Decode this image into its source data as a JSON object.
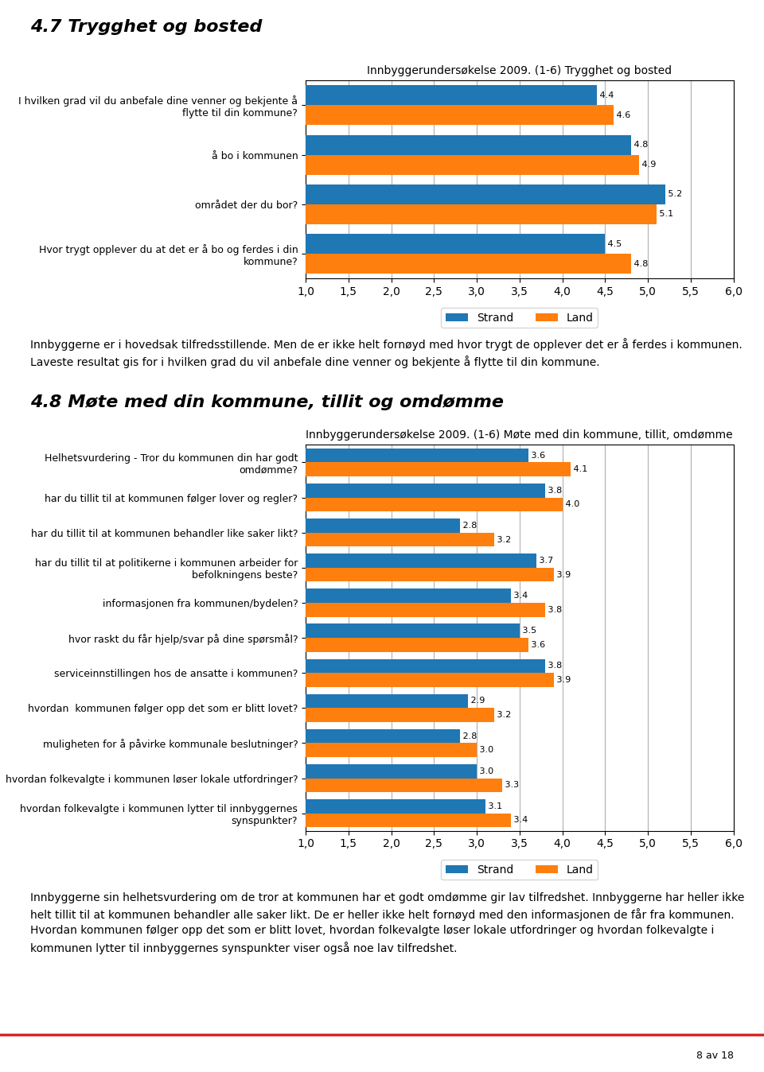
{
  "chart_data": [
    {
      "type": "bar",
      "orientation": "horizontal",
      "title": "Innbyggerundersøkelse 2009. (1-6) Trygghet og bosted",
      "annotations": [
        "4.7 Trygghet og bosted",
        "Innbyggerne er i hovedsak tilfredsstillende. Men de er ikke helt fornøyd med hvor trygt de opplever det er å ferdes i kommunen. Laveste resultat gis for i hvilken grad du vil anbefale dine venner og bekjente å flytte til din kommune."
      ],
      "categories": [
        "I hvilken grad vil du anbefale dine venner og bekjente å\nflytte til din kommune?",
        "å bo i kommunen",
        "området der du bor?",
        "Hvor trygt opplever du at det er å bo og ferdes i din\nkommune?"
      ],
      "series": [
        {
          "name": "Strand",
          "values": [
            4.4,
            4.8,
            5.2,
            4.5
          ]
        },
        {
          "name": "Land",
          "values": [
            4.6,
            4.9,
            5.1,
            4.8
          ]
        }
      ],
      "xlim": [
        1.0,
        6.0
      ],
      "xticks": [
        {
          "value": 1.0,
          "label": "1,0"
        },
        {
          "value": 1.5,
          "label": "1,5"
        },
        {
          "value": 2.0,
          "label": "2,0"
        },
        {
          "value": 2.5,
          "label": "2,5"
        },
        {
          "value": 3.0,
          "label": "3,0"
        },
        {
          "value": 3.5,
          "label": "3,5"
        },
        {
          "value": 4.0,
          "label": "4,0"
        },
        {
          "value": 4.5,
          "label": "4,5"
        },
        {
          "value": 5.0,
          "label": "5,0"
        },
        {
          "value": 5.5,
          "label": "5,5"
        },
        {
          "value": 6.0,
          "label": "6,0"
        }
      ],
      "grid": true,
      "legend": "upper center",
      "data_labels": true
    },
    {
      "type": "bar",
      "orientation": "horizontal",
      "title": "Innbyggerundersøkelse 2009. (1-6) Møte med din kommune, tillit, omdømme",
      "annotations": [
        "4.8 Møte med din kommune, tillit og omdømme",
        "Innbyggerne sin helhetsvurdering om de tror at kommunen har et godt omdømme gir lav tilfredshet. Innbyggerne har heller ikke helt tillit til at kommunen behandler alle saker likt. De er heller ikke helt fornøyd med den informasjonen de får fra kommunen.  Hvordan kommunen følger opp det som er blitt lovet, hvordan folkevalgte løser lokale utfordringer og hvordan folkevalgte i kommunen lytter til innbyggernes synspunkter viser også noe lav tilfredshet.",
        "8 av 18"
      ],
      "categories": [
        "Helhetsvurdering - Tror du kommunen din har godt\nomdømme?",
        "har du tillit til at kommunen følger lover og regler?",
        "har du tillit til at kommunen behandler like saker likt?",
        "har du tillit til at politikerne i kommunen arbeider for\nbefolkningens beste?",
        "informasjonen fra kommunen/bydelen?",
        "hvor raskt du får hjelp/svar på dine spørsmål?",
        "serviceinnstillingen hos de ansatte i kommunen?",
        "hvordan  kommunen følger opp det som er blitt lovet?",
        "muligheten for å påvirke kommunale beslutninger?",
        "hvordan folkevalgte i kommunen løser lokale utfordringer?",
        "hvordan folkevalgte i kommunen lytter til innbyggernes\nsynspunkter?"
      ],
      "series": [
        {
          "name": "Strand",
          "values": [
            3.6,
            3.8,
            2.8,
            3.7,
            3.4,
            3.5,
            3.8,
            2.9,
            2.8,
            3.0,
            3.1
          ]
        },
        {
          "name": "Land",
          "values": [
            4.1,
            4.0,
            3.2,
            3.9,
            3.8,
            3.6,
            3.9,
            3.2,
            3.0,
            3.3,
            3.4
          ]
        }
      ],
      "xlim": [
        1.0,
        6.0
      ],
      "xticks": [
        {
          "value": 1.0,
          "label": "1,0"
        },
        {
          "value": 1.5,
          "label": "1,5"
        },
        {
          "value": 2.0,
          "label": "2,0"
        },
        {
          "value": 2.5,
          "label": "2,5"
        },
        {
          "value": 3.0,
          "label": "3,0"
        },
        {
          "value": 3.5,
          "label": "3,5"
        },
        {
          "value": 4.0,
          "label": "4,0"
        },
        {
          "value": 4.5,
          "label": "4,5"
        },
        {
          "value": 5.0,
          "label": "5,0"
        },
        {
          "value": 5.5,
          "label": "5,5"
        },
        {
          "value": 6.0,
          "label": "6,0"
        }
      ],
      "grid": true,
      "legend": "upper center",
      "data_labels": true
    }
  ]
}
